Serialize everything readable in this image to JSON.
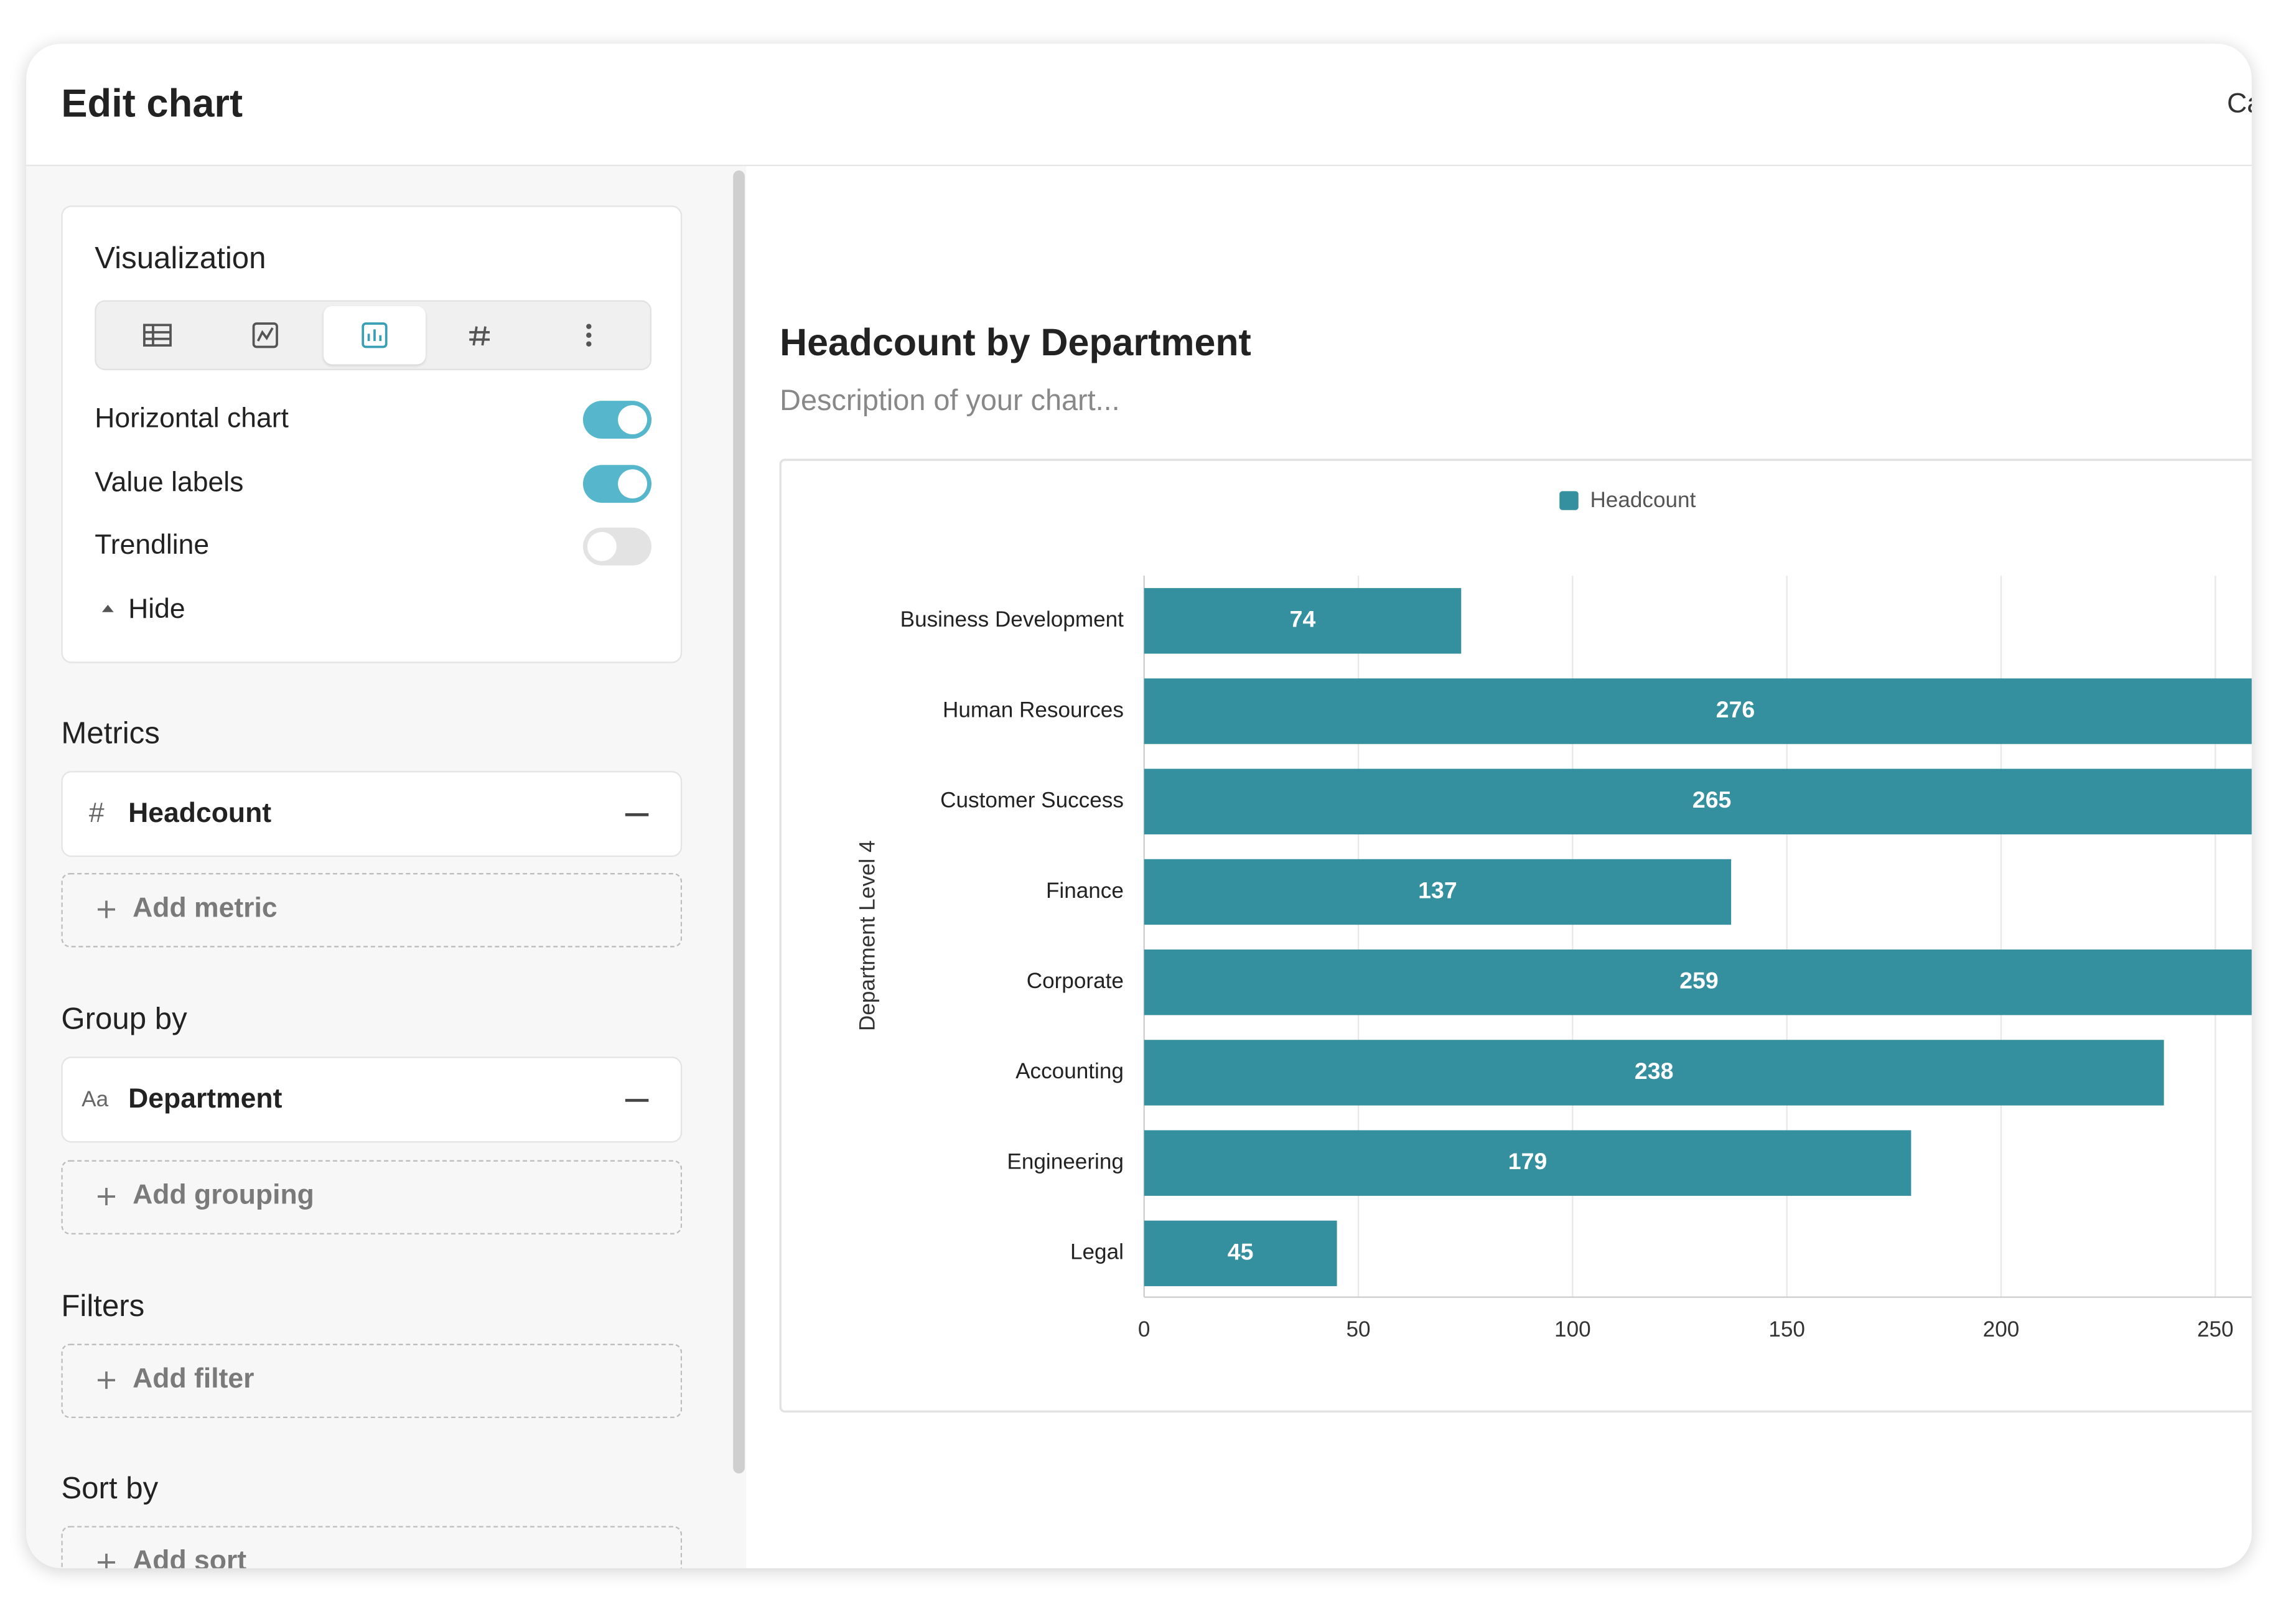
{
  "header": {
    "title": "Edit chart",
    "action": "Cancel"
  },
  "sidebar": {
    "visualization": {
      "title": "Visualization",
      "options": [
        {
          "label": "Horizontal chart",
          "on": true
        },
        {
          "label": "Value labels",
          "on": true
        },
        {
          "label": "Trendline",
          "on": false
        }
      ],
      "toggle": "Hide"
    },
    "metrics": {
      "title": "Metrics",
      "items": [
        {
          "icon": "#",
          "label": "Headcount"
        }
      ],
      "add": "Add metric"
    },
    "group_by": {
      "title": "Group by",
      "items": [
        {
          "icon": "Aa",
          "label": "Department"
        }
      ],
      "add": "Add grouping"
    },
    "filters": {
      "title": "Filters",
      "add": "Add filter"
    },
    "sort_by": {
      "title": "Sort by",
      "add": "Add sort"
    }
  },
  "chart_data": {
    "type": "bar",
    "orientation": "horizontal",
    "title": "Headcount by Department",
    "subtitle": "Description of your chart...",
    "y_label": "Department Level 4",
    "categories": [
      "Business Development",
      "Human Resources",
      "Customer Success",
      "Finance",
      "Corporate",
      "Accounting",
      "Engineering",
      "Legal"
    ],
    "series": [
      {
        "name": "Headcount",
        "color": "#348f9e",
        "values": [
          74,
          276,
          265,
          137,
          259,
          238,
          179,
          45
        ]
      }
    ],
    "xlim": [
      0,
      300
    ],
    "xticks": [
      0,
      50,
      100,
      150,
      200,
      250
    ],
    "grid": true,
    "show_values": true,
    "legend": "top"
  }
}
